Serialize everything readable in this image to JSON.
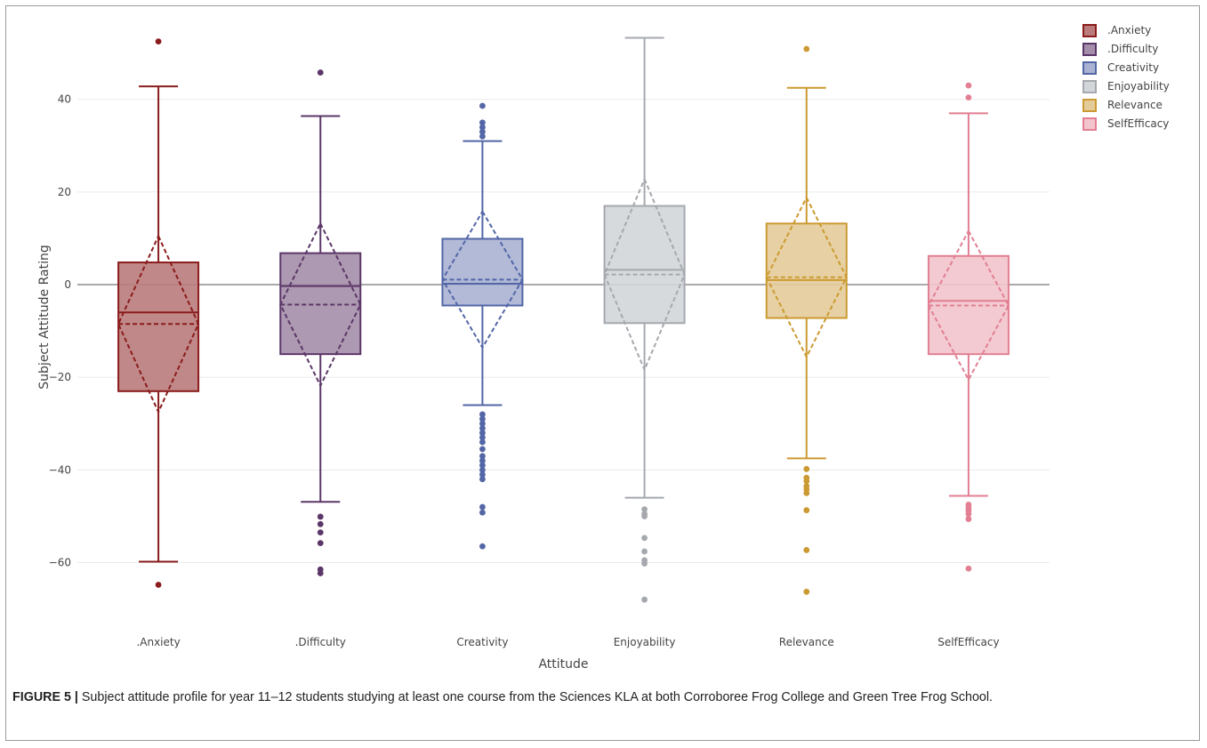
{
  "chart_data": {
    "type": "box",
    "xlabel": "Attitude",
    "ylabel": "Subject Attitude Rating",
    "ylim": [
      -72,
      58
    ],
    "yticks": [
      40,
      20,
      0,
      -20,
      -40,
      -60
    ],
    "ytick_labels": [
      "40",
      "20",
      "0",
      "−20",
      "−40",
      "−60"
    ],
    "grid": true,
    "legend_position": "top-right",
    "categories": [
      ".Anxiety",
      ".Difficulty",
      "Creativity",
      "Enjoyability",
      "Relevance",
      "SelfEfficacy"
    ],
    "series": [
      {
        "name": ".Anxiety",
        "color": "#8b1c1c",
        "fill": "#b97b7b",
        "q1": -23,
        "median": -6,
        "q3": 4.8,
        "whisker_low": -59.8,
        "whisker_high": 42.8,
        "mean": -8.5,
        "mean_minus_sd": -27.5,
        "mean_plus_sd": 10.5,
        "outliers": [
          52.5,
          -64.8
        ]
      },
      {
        "name": ".Difficulty",
        "color": "#5b3668",
        "fill": "#a48ea9",
        "q1": -15,
        "median": -0.3,
        "q3": 6.8,
        "whisker_low": -46.9,
        "whisker_high": 36.4,
        "mean": -4.3,
        "mean_minus_sd": -21.8,
        "mean_plus_sd": 13.2,
        "outliers": [
          45.8,
          -50.1,
          -51.7,
          -53.5,
          -55.8,
          -61.5,
          -62.3
        ]
      },
      {
        "name": "Creativity",
        "color": "#5366a6",
        "fill": "#aab2d4",
        "q1": -4.5,
        "median": 0.2,
        "q3": 9.9,
        "whisker_low": -26,
        "whisker_high": 31,
        "mean": 1.1,
        "mean_minus_sd": -13.6,
        "mean_plus_sd": 15.8,
        "outliers": [
          38.6,
          35,
          34,
          33,
          32,
          -28,
          -29,
          -30,
          -31,
          -32,
          -33,
          -34,
          -35.5,
          -37,
          -38,
          -39,
          -40,
          -41,
          -42,
          -48,
          -49.2,
          -56.5
        ]
      },
      {
        "name": "Enjoyability",
        "color": "#a5a9ae",
        "fill": "#d3d6d9",
        "q1": -8.3,
        "median": 3.2,
        "q3": 17,
        "whisker_low": -46,
        "whisker_high": 53.3,
        "mean": 2.2,
        "mean_minus_sd": -18.4,
        "mean_plus_sd": 22.8,
        "outliers": [
          -48.5,
          -49.5,
          -50,
          -54.7,
          -57.6,
          -59.5,
          -60.2,
          -68
        ]
      },
      {
        "name": "Relevance",
        "color": "#cc9a32",
        "fill": "#e4cc9a",
        "q1": -7.2,
        "median": 1,
        "q3": 13.2,
        "whisker_low": -37.5,
        "whisker_high": 42.5,
        "mean": 1.6,
        "mean_minus_sd": -15.6,
        "mean_plus_sd": 18.8,
        "outliers": [
          50.9,
          -39.8,
          -41.7,
          -42.4,
          -43.5,
          -44.2,
          -45,
          -48.7,
          -57.3,
          -66.3
        ]
      },
      {
        "name": "SelfEfficacy",
        "color": "#e27f93",
        "fill": "#f2c4cc",
        "q1": -15,
        "median": -3.5,
        "q3": 6.2,
        "whisker_low": -45.6,
        "whisker_high": 37,
        "mean": -4.5,
        "mean_minus_sd": -20.5,
        "mean_plus_sd": 11.6,
        "outliers": [
          43,
          40.4,
          -47.5,
          -48.2,
          -48.8,
          -49.5,
          -50.6,
          -61.3
        ]
      }
    ]
  },
  "caption": {
    "label": "FIGURE 5 |",
    "text": " Subject attitude profile for year 11–12 students studying at least one course from the Sciences KLA at both Corroboree Frog College and Green Tree Frog School."
  }
}
